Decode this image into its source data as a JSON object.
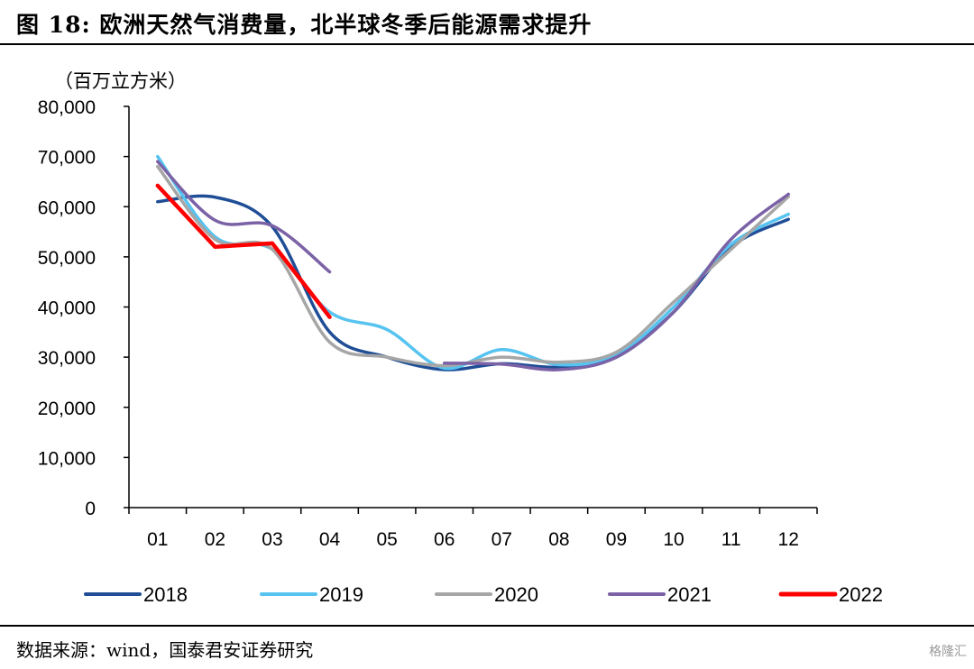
{
  "figure": {
    "title": "图 18: 欧洲天然气消费量，北半球冬季后能源需求提升",
    "source": "数据来源：wind，国泰君安证券研究",
    "watermark": "格隆汇"
  },
  "chart_data": {
    "type": "line",
    "unit": "（百万立方米）",
    "x": [
      "01",
      "02",
      "03",
      "04",
      "05",
      "06",
      "07",
      "08",
      "09",
      "10",
      "11",
      "12"
    ],
    "y_ticks": [
      "80,000",
      "70,000",
      "60,000",
      "50,000",
      "40,000",
      "30,000",
      "20,000",
      "10,000",
      "0"
    ],
    "ylim": [
      0,
      80000
    ],
    "grid": false,
    "legend_position": "bottom",
    "series": [
      {
        "name": "2018",
        "color": "#1f4e96",
        "values": [
          61000,
          61900,
          56000,
          35000,
          30000,
          27500,
          28700,
          28000,
          30000,
          39000,
          52000,
          57500
        ]
      },
      {
        "name": "2019",
        "color": "#56c3f0",
        "values": [
          70000,
          54000,
          51500,
          39000,
          35500,
          27800,
          31500,
          28500,
          30500,
          40000,
          52500,
          58500
        ]
      },
      {
        "name": "2020",
        "color": "#a6a6a6",
        "values": [
          68000,
          53500,
          51500,
          33000,
          30000,
          28300,
          30000,
          29000,
          31000,
          41000,
          51500,
          62000
        ]
      },
      {
        "name": "2021",
        "color": "#7b62a6",
        "values": [
          69000,
          57300,
          56200,
          47000,
          null,
          28800,
          28600,
          27500,
          30000,
          39000,
          53500,
          62500
        ]
      },
      {
        "name": "2022",
        "color": "#ff0000",
        "values": [
          64200,
          52000,
          52700,
          38000,
          null,
          null,
          null,
          null,
          null,
          null,
          null,
          null
        ]
      }
    ]
  }
}
